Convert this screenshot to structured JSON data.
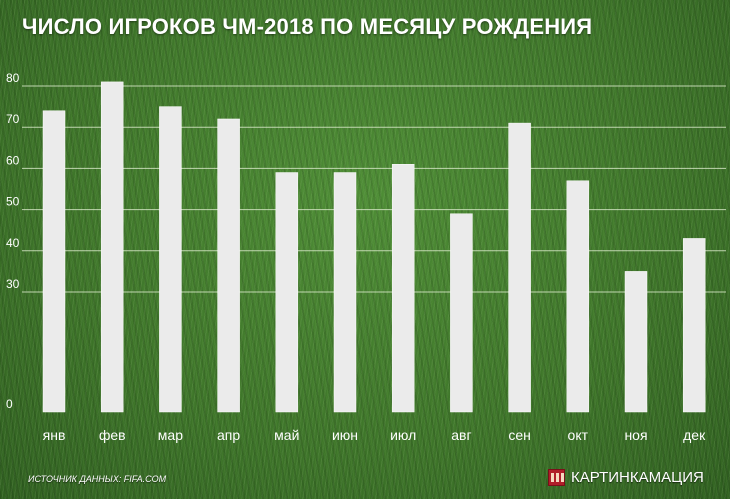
{
  "title": "ЧИСЛО ИГРОКОВ ЧМ-2018 ПО МЕСЯЦУ РОЖДЕНИЯ",
  "source": "ИСТОЧНИК ДАННЫХ: FIFA.COM",
  "brand": {
    "name": "КАРТИНКАМАЦИЯ",
    "logo_icon": "kartinkamatsiya-logo-icon",
    "logo_color": "#b01e2a"
  },
  "colors": {
    "bar": "#ebebeb",
    "gridline": "#d8e8c8",
    "text": "#ffffff"
  },
  "chart_data": {
    "type": "bar",
    "title": "ЧИСЛО ИГРОКОВ ЧМ-2018 ПО МЕСЯЦУ РОЖДЕНИЯ",
    "categories": [
      "янв",
      "фев",
      "мар",
      "апр",
      "май",
      "июн",
      "июл",
      "авг",
      "сен",
      "окт",
      "ноя",
      "дек"
    ],
    "values": [
      74,
      81,
      75,
      72,
      59,
      59,
      61,
      49,
      71,
      57,
      35,
      43
    ],
    "y_ticks": [
      0,
      30,
      40,
      50,
      60,
      70,
      80
    ],
    "ylim": [
      0,
      86
    ],
    "y_axis_break": "between 0 and 30",
    "grid": "horizontal",
    "legend": "none",
    "xlabel": "",
    "ylabel": ""
  }
}
